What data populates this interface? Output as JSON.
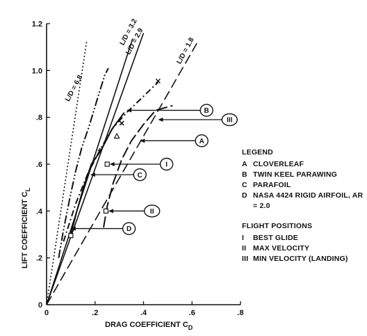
{
  "chart_data": {
    "type": "line",
    "xlabel": "DRAG COEFFICIENT C",
    "xlabel_sub": "D",
    "ylabel": "LIFT COEFFICIENT C",
    "ylabel_sub": "L",
    "xlim": [
      0,
      0.8
    ],
    "ylim": [
      0,
      1.2
    ],
    "xticks": [
      0,
      0.2,
      0.4,
      0.6,
      0.8
    ],
    "yticks": [
      0,
      0.2,
      0.4,
      0.6,
      0.8,
      1.0,
      1.2
    ],
    "xtick_labels": [
      "0",
      ".2",
      ".4",
      ".6",
      ".8"
    ],
    "ytick_labels": [
      "0",
      ".2",
      ".4",
      ".6",
      ".8",
      "1.0",
      "1.2"
    ],
    "grid": false,
    "series": [
      {
        "key": "A",
        "name": "CLOVERLEAF",
        "dash": "16,5",
        "points": [
          [
            0.235,
            0.33
          ],
          [
            0.25,
            0.42
          ],
          [
            0.275,
            0.52
          ],
          [
            0.31,
            0.62
          ],
          [
            0.35,
            0.7
          ],
          [
            0.4,
            0.77
          ],
          [
            0.45,
            0.83
          ],
          [
            0.52,
            0.85
          ]
        ]
      },
      {
        "key": "B",
        "name": "TWIN KEEL PARAWING",
        "dash": "9,4,2,4",
        "points": [
          [
            0.07,
            0.27
          ],
          [
            0.12,
            0.43
          ],
          [
            0.17,
            0.56
          ],
          [
            0.22,
            0.66
          ],
          [
            0.27,
            0.75
          ],
          [
            0.33,
            0.82
          ],
          [
            0.4,
            0.89
          ],
          [
            0.46,
            0.95
          ]
        ]
      },
      {
        "key": "C",
        "name": "PARAFOIL",
        "dash": "",
        "points": [
          [
            0.1,
            0.3
          ],
          [
            0.125,
            0.4
          ],
          [
            0.155,
            0.51
          ],
          [
            0.185,
            0.6
          ],
          [
            0.225,
            0.66
          ],
          [
            0.27,
            0.75
          ],
          [
            0.32,
            0.82
          ]
        ]
      },
      {
        "key": "D",
        "name": "NASA 4424 RIGID AIRFOIL, AR = 2.0",
        "dash": "12,3,2,3,2,3",
        "points": [
          [
            0.05,
            0.2
          ],
          [
            0.07,
            0.32
          ],
          [
            0.095,
            0.45
          ],
          [
            0.12,
            0.57
          ],
          [
            0.145,
            0.67
          ],
          [
            0.175,
            0.76
          ],
          [
            0.21,
            0.88
          ],
          [
            0.24,
            0.98
          ],
          [
            0.255,
            1.01
          ]
        ]
      }
    ],
    "ld_lines": [
      {
        "label": "L/D = 6.8",
        "ratio": 6.8,
        "dash": "2,3",
        "end_x": 0.165,
        "label_x": 0.12,
        "label_y": 0.92
      },
      {
        "label": "L/D = 3.2",
        "ratio": 3.2,
        "dash": "",
        "end_x": 0.355,
        "label_x": 0.345,
        "label_y": 1.16
      },
      {
        "label": "L/D = 2.9",
        "ratio": 2.9,
        "dash": "",
        "end_x": 0.4,
        "label_x": 0.37,
        "label_y": 1.12
      },
      {
        "label": "L/D = 1.8",
        "ratio": 1.8,
        "dash": "14,6",
        "end_x": 0.62,
        "label_x": 0.58,
        "label_y": 1.08
      }
    ],
    "flight_point_markers": [
      {
        "symbol": "□",
        "x": 0.25,
        "y": 0.6
      },
      {
        "symbol": "□",
        "x": 0.245,
        "y": 0.4
      },
      {
        "symbol": "□",
        "x": 0.1,
        "y": 0.295
      },
      {
        "symbol": "△",
        "x": 0.29,
        "y": 0.72
      },
      {
        "symbol": "×",
        "x": 0.31,
        "y": 0.775
      },
      {
        "symbol": "×",
        "x": 0.46,
        "y": 0.955
      },
      {
        "symbol": "+",
        "x": 0.22,
        "y": 0.66
      }
    ],
    "callouts": [
      {
        "letter": "B",
        "from": [
          0.33,
          0.83
        ],
        "label_at": [
          0.66,
          0.83
        ]
      },
      {
        "letter": "III",
        "from": [
          0.46,
          0.79
        ],
        "label_at": [
          0.755,
          0.79
        ]
      },
      {
        "letter": "A",
        "from": [
          0.385,
          0.7
        ],
        "label_at": [
          0.64,
          0.7
        ]
      },
      {
        "letter": "I",
        "from": [
          0.26,
          0.6
        ],
        "label_at": [
          0.495,
          0.6
        ]
      },
      {
        "letter": "C",
        "from": [
          0.18,
          0.555
        ],
        "label_at": [
          0.385,
          0.555
        ]
      },
      {
        "letter": "II",
        "from": [
          0.255,
          0.4
        ],
        "label_at": [
          0.435,
          0.4
        ]
      },
      {
        "letter": "D",
        "from": [
          0.1,
          0.325
        ],
        "label_at": [
          0.34,
          0.325
        ]
      }
    ]
  },
  "legend": {
    "title": "LEGEND",
    "items": [
      {
        "key": "A",
        "text": "CLOVERLEAF"
      },
      {
        "key": "B",
        "text": "TWIN KEEL PARAWING"
      },
      {
        "key": "C",
        "text": "PARAFOIL"
      },
      {
        "key": "D",
        "text": "NASA 4424 RIGID AIRFOIL, AR = 2.0"
      }
    ]
  },
  "flight_positions": {
    "title": "FLIGHT POSITIONS",
    "items": [
      {
        "key": "I",
        "text": "BEST GLIDE"
      },
      {
        "key": "II",
        "text": "MAX VELOCITY"
      },
      {
        "key": "III",
        "text": "MIN VELOCITY (LANDING)"
      }
    ]
  }
}
